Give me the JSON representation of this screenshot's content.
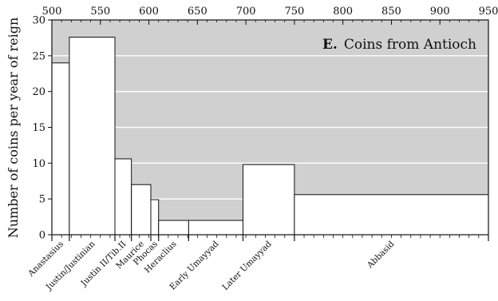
{
  "chart_data": {
    "type": "bar",
    "panel_letter": "E.",
    "title": "Coins from Antioch",
    "ylabel": "Number of coins per year of reign",
    "xlabel": "",
    "xlim": [
      500,
      950
    ],
    "ylim": [
      0,
      30
    ],
    "x_ticks": [
      500,
      550,
      600,
      650,
      700,
      750,
      800,
      850,
      900,
      950
    ],
    "y_ticks": [
      0,
      5,
      10,
      15,
      20,
      25,
      30
    ],
    "grid": true,
    "background_color": "#d0d0d0",
    "bar_color": "#ffffff",
    "bars": [
      {
        "label": "Anastasius",
        "start": 491,
        "end": 518,
        "value": 24.0
      },
      {
        "label": "Justin/Justinian",
        "start": 518,
        "end": 565,
        "value": 27.6
      },
      {
        "label": "Justin II/Tib.II",
        "start": 565,
        "end": 582,
        "value": 10.6
      },
      {
        "label": "Maurice",
        "start": 582,
        "end": 602,
        "value": 7.0
      },
      {
        "label": "Phocas",
        "start": 602,
        "end": 610,
        "value": 4.9
      },
      {
        "label": "Heraclius",
        "start": 610,
        "end": 641,
        "value": 2.0
      },
      {
        "label": "Early Umayyad",
        "start": 641,
        "end": 697,
        "value": 2.0
      },
      {
        "label": "Later Umayyad",
        "start": 697,
        "end": 750,
        "value": 9.8
      },
      {
        "label": "Abbasid",
        "start": 750,
        "end": 950,
        "value": 5.6
      }
    ]
  }
}
